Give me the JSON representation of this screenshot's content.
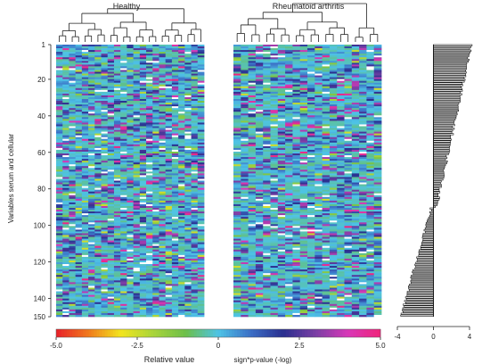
{
  "chart_data": [
    {
      "type": "heatmap",
      "title": "",
      "panels": [
        {
          "name": "Healthy",
          "columns": 23
        },
        {
          "name": "Rheumatoid arthritis",
          "columns": 20
        }
      ],
      "rows": 150,
      "ylabel": "Variables serum and cellular",
      "y_ticks": [
        "1",
        "20",
        "40",
        "60",
        "80",
        "100",
        "120",
        "140",
        "150"
      ],
      "colorbar": {
        "label": "Relative value",
        "ticks": [
          "-5.0",
          "-2.5",
          "0",
          "2.5",
          "5.0"
        ],
        "range": [
          -5,
          5
        ],
        "stops": [
          "#e8202a",
          "#f07a1c",
          "#f2e51e",
          "#a8d43a",
          "#6cbf4a",
          "#4ec3e6",
          "#3b6fc6",
          "#2a2f8f",
          "#7a3fa4",
          "#d838b8",
          "#f0247a"
        ]
      }
    },
    {
      "type": "bar",
      "orientation": "horizontal",
      "title": "",
      "xlabel": "sign*p-value (-log)",
      "x_ticks": [
        "-4",
        "0",
        "4"
      ],
      "xlim": [
        -4,
        4
      ],
      "rows": 150,
      "values_summary": "sorted: rows 1–90 positive (up to ~4), rows 91–150 negative (down to ~-3.6)"
    }
  ]
}
